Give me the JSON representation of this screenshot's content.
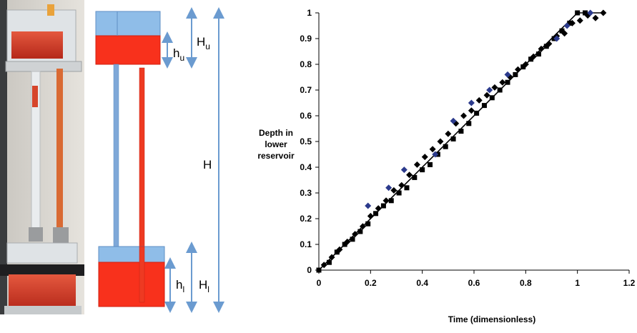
{
  "schematic": {
    "labels": {
      "hu": "h",
      "hu_sub": "u",
      "Hu": "H",
      "Hu_sub": "u",
      "H": "H",
      "hl": "h",
      "hl_sub": "l",
      "Hl": "H",
      "Hl_sub": "l"
    },
    "colors": {
      "water": "#f8311c",
      "air": "#8fbde8",
      "tube_blue": "#7fa8d8",
      "tube_red": "#ee3a22",
      "arrow": "#6b9bd0"
    }
  },
  "chart_data": {
    "type": "scatter",
    "xlabel": "Time (dimensionless)",
    "ylabel_lines": [
      "Depth in",
      "lower",
      "reservoir"
    ],
    "xlim": [
      0,
      1.2
    ],
    "ylim": [
      0,
      1
    ],
    "x_ticks": [
      "0",
      "0.2",
      "0.4",
      "0.6",
      "0.8",
      "1",
      "1.2"
    ],
    "y_ticks": [
      "0",
      "0.1",
      "0.2",
      "0.3",
      "0.4",
      "0.5",
      "0.6",
      "0.7",
      "0.8",
      "0.9",
      "1"
    ],
    "grid": false,
    "line": {
      "x": [
        0,
        1,
        1.1
      ],
      "y": [
        0,
        1,
        1
      ]
    },
    "series": [
      {
        "marker": "square",
        "color": "#000000",
        "x": [
          0.0,
          0.04,
          0.07,
          0.1,
          0.13,
          0.16,
          0.19,
          0.22,
          0.25,
          0.28,
          0.31,
          0.34,
          0.37,
          0.4,
          0.43,
          0.46,
          0.49,
          0.52,
          0.55,
          0.58,
          0.61,
          0.64,
          0.67,
          0.7,
          0.73,
          0.76,
          0.79,
          0.82,
          0.85,
          0.88,
          0.91,
          0.94,
          0.97,
          1.0,
          1.03
        ],
        "y": [
          0.0,
          0.03,
          0.07,
          0.1,
          0.12,
          0.15,
          0.18,
          0.22,
          0.25,
          0.27,
          0.3,
          0.32,
          0.36,
          0.39,
          0.41,
          0.45,
          0.48,
          0.51,
          0.54,
          0.57,
          0.61,
          0.64,
          0.67,
          0.7,
          0.73,
          0.76,
          0.79,
          0.82,
          0.84,
          0.87,
          0.9,
          0.93,
          0.96,
          1.0,
          1.0
        ]
      },
      {
        "marker": "diamond",
        "color": "#000000",
        "x": [
          0.02,
          0.05,
          0.08,
          0.11,
          0.14,
          0.17,
          0.2,
          0.23,
          0.26,
          0.29,
          0.32,
          0.35,
          0.38,
          0.41,
          0.44,
          0.47,
          0.5,
          0.53,
          0.56,
          0.59,
          0.62,
          0.65,
          0.68,
          0.71,
          0.74,
          0.77,
          0.8,
          0.83,
          0.86,
          0.89,
          0.92,
          0.95,
          0.98,
          1.01,
          1.04,
          1.07,
          1.1
        ],
        "y": [
          0.02,
          0.05,
          0.08,
          0.11,
          0.14,
          0.17,
          0.21,
          0.24,
          0.27,
          0.31,
          0.33,
          0.37,
          0.41,
          0.44,
          0.47,
          0.5,
          0.53,
          0.57,
          0.6,
          0.62,
          0.66,
          0.68,
          0.71,
          0.73,
          0.75,
          0.78,
          0.8,
          0.83,
          0.86,
          0.88,
          0.91,
          0.92,
          0.96,
          0.97,
          0.99,
          0.98,
          1.0
        ]
      },
      {
        "marker": "diamond",
        "color": "#2b3a8c",
        "x": [
          0.19,
          0.27,
          0.33,
          0.45,
          0.52,
          0.59,
          0.66,
          0.73,
          0.92,
          0.96,
          1.05
        ],
        "y": [
          0.25,
          0.32,
          0.39,
          0.45,
          0.58,
          0.65,
          0.7,
          0.76,
          0.9,
          0.95,
          1.0
        ]
      }
    ]
  }
}
